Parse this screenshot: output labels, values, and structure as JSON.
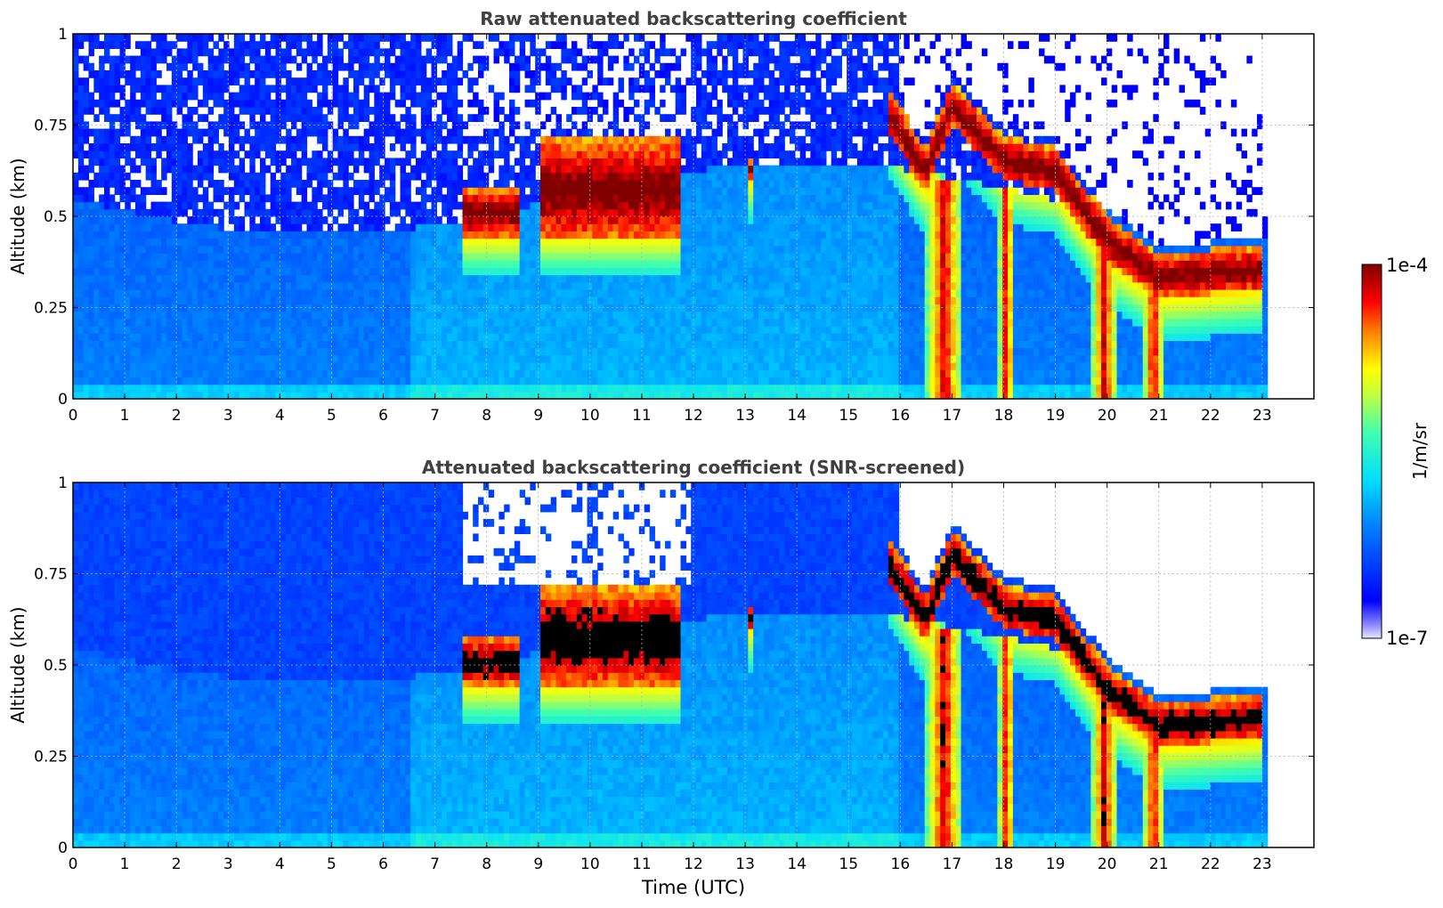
{
  "chart_data": [
    {
      "type": "heatmap",
      "title": "Raw attenuated backscattering coefficient",
      "xlabel": "",
      "ylabel": "Altitude (km)",
      "xlim": [
        0,
        24
      ],
      "ylim": [
        0,
        1
      ],
      "xticks": [
        "0",
        "1",
        "2",
        "3",
        "4",
        "5",
        "6",
        "7",
        "8",
        "9",
        "10",
        "11",
        "12",
        "13",
        "14",
        "15",
        "16",
        "17",
        "18",
        "19",
        "20",
        "21",
        "22",
        "23"
      ],
      "yticks": [
        "0",
        "0.25",
        "0.5",
        "0.75",
        "1"
      ],
      "grid": true,
      "data_end_hour": 23.1,
      "layers": [
        {
          "kind": "cloud",
          "start": 7.5,
          "end": 8.6,
          "base": 0.45,
          "top": 0.58
        },
        {
          "kind": "cloud",
          "start": 9.0,
          "end": 11.8,
          "base": 0.45,
          "top": 0.72
        },
        {
          "kind": "cloud",
          "start": 13.05,
          "end": 13.2,
          "base": 0.6,
          "top": 0.66
        },
        {
          "kind": "cloud",
          "start": 15.8,
          "end": 23.0,
          "base_path": [
            [
              15.8,
              0.72
            ],
            [
              16.5,
              0.57
            ],
            [
              17.0,
              0.75
            ],
            [
              18.0,
              0.6
            ],
            [
              19.0,
              0.57
            ],
            [
              20.0,
              0.38
            ],
            [
              21.0,
              0.28
            ],
            [
              23.0,
              0.3
            ]
          ],
          "thickness": 0.12
        },
        {
          "kind": "precipitation",
          "start": 16.5,
          "end": 17.2,
          "from": 0.6,
          "to": 0
        },
        {
          "kind": "precipitation",
          "start": 17.9,
          "end": 18.2,
          "from": 0.6,
          "to": 0
        },
        {
          "kind": "precipitation",
          "start": 19.7,
          "end": 20.2,
          "from": 0.45,
          "to": 0
        },
        {
          "kind": "precipitation",
          "start": 20.7,
          "end": 21.1,
          "from": 0.3,
          "to": 0
        }
      ]
    },
    {
      "type": "heatmap",
      "title": "Attenuated backscattering coefficient (SNR-screened)",
      "xlabel": "Time (UTC)",
      "ylabel": "Altitude (km)",
      "xlim": [
        0,
        24
      ],
      "ylim": [
        0,
        1
      ],
      "xticks": [
        "0",
        "1",
        "2",
        "3",
        "4",
        "5",
        "6",
        "7",
        "8",
        "9",
        "10",
        "11",
        "12",
        "13",
        "14",
        "15",
        "16",
        "17",
        "18",
        "19",
        "20",
        "21",
        "22",
        "23"
      ],
      "yticks": [
        "0",
        "0.25",
        "0.5",
        "0.75",
        "1"
      ],
      "grid": true,
      "data_end_hour": 23.1,
      "screened": true
    }
  ],
  "colorbar": {
    "label": "1/m/sr",
    "max_label": "1e-4",
    "min_label": "1e-7",
    "scale": "log",
    "range": [
      1e-07,
      0.0001
    ],
    "colormap": "jet"
  },
  "colors": {
    "title": "#404040",
    "axis": "#000000",
    "grid": "#b0b0b0",
    "saturated": "#000000"
  }
}
